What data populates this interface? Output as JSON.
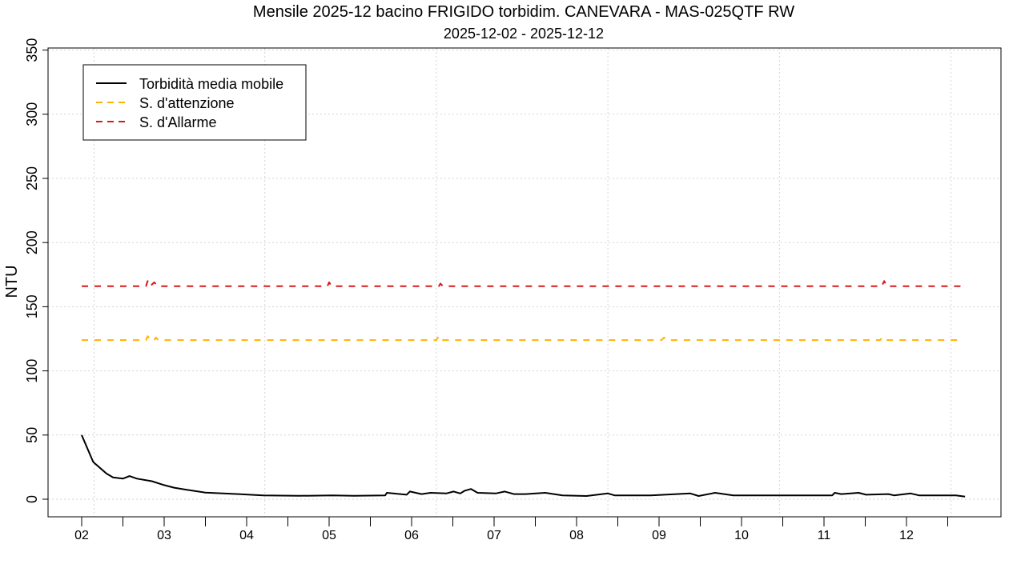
{
  "chart_data": {
    "type": "line",
    "title": "Mensile 2025-12 bacino FRIGIDO torbidim. CANEVARA - MAS-025QTF RW",
    "subtitle": "2025-12-02 - 2025-12-12",
    "xlabel": "",
    "ylabel": "NTU",
    "xlim": [
      1.4,
      13.0
    ],
    "ylim": [
      -14,
      354
    ],
    "x_ticks": [
      2,
      3,
      4,
      5,
      6,
      7,
      8,
      9,
      10,
      11,
      12
    ],
    "x_tick_labels": [
      "02",
      "03",
      "04",
      "05",
      "06",
      "07",
      "08",
      "09",
      "10",
      "11",
      "12"
    ],
    "y_ticks": [
      0,
      50,
      100,
      150,
      200,
      250,
      300,
      350
    ],
    "y_tick_labels": [
      "0",
      "50",
      "100",
      "150",
      "200",
      "250",
      "300",
      "350"
    ],
    "grid": true,
    "grid_x": [
      2.15,
      4.22,
      6.3,
      8.38,
      10.46,
      12.54
    ],
    "legend_position": "top-left",
    "series": [
      {
        "name": "Torbidità media mobile",
        "color": "#000000",
        "style": "solid",
        "points": [
          [
            2.0,
            50
          ],
          [
            2.14,
            29
          ],
          [
            2.3,
            20
          ],
          [
            2.38,
            17
          ],
          [
            2.5,
            16
          ],
          [
            2.58,
            18
          ],
          [
            2.67,
            16
          ],
          [
            2.85,
            14
          ],
          [
            3.0,
            11
          ],
          [
            3.12,
            9
          ],
          [
            3.26,
            7.5
          ],
          [
            3.5,
            5.2
          ],
          [
            3.9,
            4
          ],
          [
            4.2,
            3
          ],
          [
            4.64,
            2.6
          ],
          [
            5.04,
            3
          ],
          [
            5.3,
            2.6
          ],
          [
            5.68,
            3
          ],
          [
            5.7,
            5
          ],
          [
            5.94,
            3.5
          ],
          [
            5.98,
            6
          ],
          [
            6.12,
            4
          ],
          [
            6.23,
            5
          ],
          [
            6.42,
            4.5
          ],
          [
            6.51,
            6
          ],
          [
            6.59,
            4.5
          ],
          [
            6.64,
            6.5
          ],
          [
            6.72,
            8
          ],
          [
            6.8,
            5
          ],
          [
            7.02,
            4.5
          ],
          [
            7.13,
            6
          ],
          [
            7.24,
            4
          ],
          [
            7.38,
            4
          ],
          [
            7.62,
            5
          ],
          [
            7.83,
            3
          ],
          [
            8.12,
            2.5
          ],
          [
            8.38,
            4.5
          ],
          [
            8.46,
            3
          ],
          [
            8.9,
            3
          ],
          [
            9.38,
            4.5
          ],
          [
            9.48,
            2.5
          ],
          [
            9.68,
            5
          ],
          [
            9.9,
            3
          ],
          [
            10.16,
            3
          ],
          [
            11.1,
            3
          ],
          [
            11.13,
            5
          ],
          [
            11.21,
            4
          ],
          [
            11.42,
            5
          ],
          [
            11.51,
            3.5
          ],
          [
            11.78,
            4
          ],
          [
            11.85,
            3
          ],
          [
            12.05,
            4.5
          ],
          [
            12.15,
            3
          ],
          [
            12.6,
            3
          ],
          [
            12.71,
            2
          ]
        ]
      },
      {
        "name": "S. d'attenzione",
        "color": "#FFB300",
        "style": "dashed",
        "points": [
          [
            2.0,
            124
          ],
          [
            2.78,
            124
          ],
          [
            2.8,
            127
          ],
          [
            2.84,
            124
          ],
          [
            2.88,
            124
          ],
          [
            2.9,
            126
          ],
          [
            2.93,
            124
          ],
          [
            6.3,
            124
          ],
          [
            6.33,
            127
          ],
          [
            6.36,
            124
          ],
          [
            9.03,
            124
          ],
          [
            9.06,
            126
          ],
          [
            9.1,
            124
          ],
          [
            11.68,
            124
          ],
          [
            11.71,
            126
          ],
          [
            11.74,
            124
          ],
          [
            12.66,
            124
          ]
        ]
      },
      {
        "name": "S. d'Allarme",
        "color": "#D7191C",
        "style": "dashed",
        "points": [
          [
            2.0,
            166
          ],
          [
            2.78,
            166
          ],
          [
            2.8,
            170
          ],
          [
            2.83,
            166
          ],
          [
            2.88,
            169
          ],
          [
            2.92,
            166
          ],
          [
            4.98,
            166
          ],
          [
            5.0,
            169
          ],
          [
            5.03,
            166
          ],
          [
            6.33,
            166
          ],
          [
            6.35,
            168
          ],
          [
            6.38,
            166
          ],
          [
            9.03,
            166
          ],
          [
            9.05,
            167
          ],
          [
            9.08,
            166
          ],
          [
            11.7,
            166
          ],
          [
            11.73,
            170
          ],
          [
            11.76,
            166
          ],
          [
            12.7,
            166
          ]
        ]
      }
    ]
  }
}
